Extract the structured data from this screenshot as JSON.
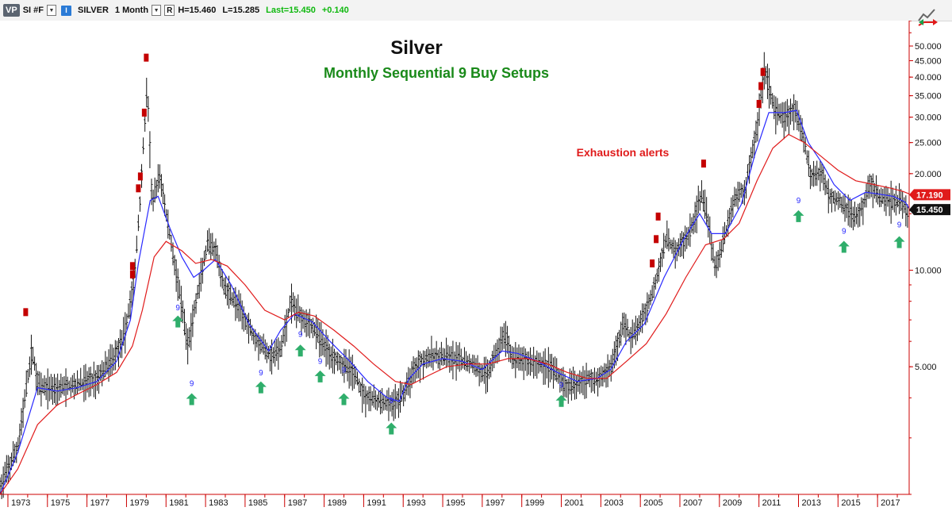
{
  "toolbar": {
    "vp_label": "VP",
    "symbol": "SI #F",
    "i_label": "I",
    "name": "SILVER",
    "interval": "1 Month",
    "r_label": "R",
    "high": "H=15.460",
    "low": "L=15.285",
    "last": "Last=15.450",
    "change": "+0.140",
    "corner_icon": "chart-compare-icon"
  },
  "chart_data": {
    "type": "line",
    "subtype": "monthly-ohlc-bars-with-moving-averages",
    "title": "Silver",
    "subtitle": "Monthly Sequential 9 Buy Setups",
    "annotation": "Exhaustion alerts",
    "y_scale": "log",
    "ylim": [
      2.0,
      60.0
    ],
    "xlim": [
      1972.6,
      2018.6
    ],
    "y_ticks": [
      {
        "value": 50,
        "label": "50.000"
      },
      {
        "value": 45,
        "label": "45.000"
      },
      {
        "value": 40,
        "label": "40.000"
      },
      {
        "value": 35,
        "label": "35.000"
      },
      {
        "value": 30,
        "label": "30.000"
      },
      {
        "value": 25,
        "label": "25.000"
      },
      {
        "value": 20,
        "label": "20.000"
      },
      {
        "value": 10,
        "label": "10.000"
      },
      {
        "value": 5,
        "label": "5.000"
      }
    ],
    "x_ticks": [
      "1973",
      "1975",
      "1977",
      "1979",
      "1981",
      "1983",
      "1985",
      "1987",
      "1989",
      "1991",
      "1993",
      "1995",
      "1997",
      "1999",
      "2001",
      "2003",
      "2005",
      "2007",
      "2009",
      "2011",
      "2013",
      "2015",
      "2017"
    ],
    "price_anchors": [
      [
        1972.6,
        2.1
      ],
      [
        1973.5,
        2.8
      ],
      [
        1974.2,
        5.6
      ],
      [
        1974.6,
        4.3
      ],
      [
        1975.5,
        4.3
      ],
      [
        1976.5,
        4.4
      ],
      [
        1977.5,
        4.6
      ],
      [
        1978.3,
        5.3
      ],
      [
        1978.9,
        6.3
      ],
      [
        1979.4,
        9.5
      ],
      [
        1979.7,
        17.0
      ],
      [
        1980.05,
        38.0
      ],
      [
        1980.3,
        16.0
      ],
      [
        1980.7,
        20.0
      ],
      [
        1981.0,
        15.0
      ],
      [
        1981.5,
        10.0
      ],
      [
        1982.1,
        5.8
      ],
      [
        1982.6,
        8.5
      ],
      [
        1983.1,
        12.0
      ],
      [
        1983.5,
        11.5
      ],
      [
        1983.9,
        9.0
      ],
      [
        1984.5,
        8.0
      ],
      [
        1985.5,
        6.2
      ],
      [
        1986.3,
        5.4
      ],
      [
        1986.8,
        5.6
      ],
      [
        1987.3,
        8.0
      ],
      [
        1987.7,
        7.4
      ],
      [
        1988.5,
        6.6
      ],
      [
        1989.2,
        5.6
      ],
      [
        1990.0,
        5.1
      ],
      [
        1990.5,
        4.8
      ],
      [
        1991.0,
        4.1
      ],
      [
        1991.7,
        3.9
      ],
      [
        1992.5,
        3.8
      ],
      [
        1993.1,
        4.2
      ],
      [
        1993.5,
        4.9
      ],
      [
        1994.0,
        5.3
      ],
      [
        1994.5,
        5.4
      ],
      [
        1995.5,
        5.3
      ],
      [
        1996.5,
        5.1
      ],
      [
        1997.2,
        4.7
      ],
      [
        1998.1,
        6.3
      ],
      [
        1998.6,
        5.3
      ],
      [
        1999.5,
        5.2
      ],
      [
        2000.5,
        5.0
      ],
      [
        2001.3,
        4.3
      ],
      [
        2002.2,
        4.6
      ],
      [
        2003.0,
        4.6
      ],
      [
        2003.5,
        5.0
      ],
      [
        2004.2,
        7.0
      ],
      [
        2004.5,
        6.1
      ],
      [
        2005.0,
        6.8
      ],
      [
        2005.6,
        8.5
      ],
      [
        2006.3,
        12.5
      ],
      [
        2006.8,
        11.5
      ],
      [
        2007.5,
        13.0
      ],
      [
        2008.1,
        17.5
      ],
      [
        2008.5,
        13.5
      ],
      [
        2008.8,
        10.0
      ],
      [
        2009.3,
        13.0
      ],
      [
        2009.8,
        17.0
      ],
      [
        2010.3,
        18.0
      ],
      [
        2010.9,
        28.0
      ],
      [
        2011.3,
        43.0
      ],
      [
        2011.8,
        31.0
      ],
      [
        2012.3,
        30.0
      ],
      [
        2012.8,
        32.0
      ],
      [
        2013.3,
        25.0
      ],
      [
        2013.6,
        20.0
      ],
      [
        2014.2,
        20.0
      ],
      [
        2014.6,
        17.0
      ],
      [
        2015.0,
        16.5
      ],
      [
        2015.5,
        15.5
      ],
      [
        2015.9,
        14.5
      ],
      [
        2016.3,
        16.0
      ],
      [
        2016.6,
        19.0
      ],
      [
        2017.0,
        17.0
      ],
      [
        2017.5,
        16.5
      ],
      [
        2018.0,
        16.5
      ],
      [
        2018.3,
        16.3
      ],
      [
        2018.5,
        14.7
      ],
      [
        2018.6,
        15.3
      ]
    ],
    "series": [
      {
        "name": "",
        "color": "#2a2aff",
        "points": [
          [
            1972.6,
            2.0
          ],
          [
            1973.5,
            2.7
          ],
          [
            1974.5,
            4.3
          ],
          [
            1975.5,
            4.2
          ],
          [
            1976.5,
            4.3
          ],
          [
            1977.5,
            4.5
          ],
          [
            1978.5,
            5.2
          ],
          [
            1979.2,
            7.0
          ],
          [
            1979.6,
            10.5
          ],
          [
            1980.2,
            16.5
          ],
          [
            1980.6,
            17.0
          ],
          [
            1981.2,
            13.5
          ],
          [
            1981.8,
            11.0
          ],
          [
            1982.4,
            9.5
          ],
          [
            1982.9,
            10.0
          ],
          [
            1983.5,
            10.8
          ],
          [
            1984.3,
            9.0
          ],
          [
            1985.2,
            6.8
          ],
          [
            1986.2,
            5.6
          ],
          [
            1986.8,
            6.5
          ],
          [
            1987.5,
            7.3
          ],
          [
            1988.4,
            6.9
          ],
          [
            1989.3,
            6.0
          ],
          [
            1990.3,
            5.2
          ],
          [
            1991.2,
            4.5
          ],
          [
            1992.2,
            4.0
          ],
          [
            1992.8,
            3.9
          ],
          [
            1993.3,
            4.6
          ],
          [
            1994.0,
            5.1
          ],
          [
            1995.0,
            5.3
          ],
          [
            1996.0,
            5.2
          ],
          [
            1997.0,
            4.9
          ],
          [
            1998.0,
            5.6
          ],
          [
            1998.8,
            5.5
          ],
          [
            1999.8,
            5.2
          ],
          [
            2000.8,
            4.8
          ],
          [
            2001.8,
            4.5
          ],
          [
            2002.8,
            4.6
          ],
          [
            2003.5,
            4.9
          ],
          [
            2004.3,
            6.0
          ],
          [
            2005.2,
            6.8
          ],
          [
            2006.2,
            9.5
          ],
          [
            2007.2,
            12.5
          ],
          [
            2008.0,
            15.0
          ],
          [
            2008.6,
            13.0
          ],
          [
            2009.3,
            13.0
          ],
          [
            2010.1,
            16.0
          ],
          [
            2010.8,
            23.0
          ],
          [
            2011.5,
            31.0
          ],
          [
            2012.3,
            31.0
          ],
          [
            2012.9,
            31.5
          ],
          [
            2013.5,
            25.0
          ],
          [
            2014.2,
            21.5
          ],
          [
            2014.8,
            18.5
          ],
          [
            2015.6,
            16.5
          ],
          [
            2016.4,
            17.5
          ],
          [
            2017.0,
            17.3
          ],
          [
            2017.8,
            17.0
          ],
          [
            2018.4,
            16.3
          ],
          [
            2018.6,
            15.6
          ]
        ]
      },
      {
        "name": "",
        "color": "#e01b1b",
        "points": [
          [
            1972.6,
            2.0
          ],
          [
            1973.5,
            2.4
          ],
          [
            1974.5,
            3.3
          ],
          [
            1975.5,
            3.8
          ],
          [
            1976.5,
            4.1
          ],
          [
            1977.5,
            4.4
          ],
          [
            1978.5,
            4.8
          ],
          [
            1979.3,
            5.8
          ],
          [
            1979.8,
            7.5
          ],
          [
            1980.4,
            11.0
          ],
          [
            1981.0,
            12.3
          ],
          [
            1981.8,
            11.5
          ],
          [
            1982.5,
            10.5
          ],
          [
            1983.3,
            10.8
          ],
          [
            1984.1,
            10.3
          ],
          [
            1985.0,
            9.0
          ],
          [
            1986.0,
            7.5
          ],
          [
            1987.0,
            7.0
          ],
          [
            1987.7,
            7.4
          ],
          [
            1988.5,
            7.2
          ],
          [
            1989.5,
            6.5
          ],
          [
            1990.5,
            5.8
          ],
          [
            1991.5,
            5.1
          ],
          [
            1992.6,
            4.5
          ],
          [
            1993.4,
            4.4
          ],
          [
            1994.3,
            4.7
          ],
          [
            1995.2,
            5.0
          ],
          [
            1996.3,
            5.1
          ],
          [
            1997.3,
            5.1
          ],
          [
            1998.3,
            5.3
          ],
          [
            1999.3,
            5.3
          ],
          [
            2000.3,
            5.1
          ],
          [
            2001.3,
            4.8
          ],
          [
            2002.3,
            4.6
          ],
          [
            2003.3,
            4.6
          ],
          [
            2004.3,
            5.2
          ],
          [
            2005.3,
            5.9
          ],
          [
            2006.3,
            7.3
          ],
          [
            2007.3,
            9.5
          ],
          [
            2008.3,
            12.0
          ],
          [
            2009.2,
            12.5
          ],
          [
            2010.0,
            14.0
          ],
          [
            2010.9,
            19.0
          ],
          [
            2011.7,
            24.0
          ],
          [
            2012.5,
            26.5
          ],
          [
            2013.3,
            25.0
          ],
          [
            2014.2,
            22.5
          ],
          [
            2015.0,
            20.5
          ],
          [
            2015.9,
            19.0
          ],
          [
            2016.8,
            18.5
          ],
          [
            2017.7,
            18.0
          ],
          [
            2018.3,
            17.6
          ],
          [
            2018.6,
            17.3
          ]
        ]
      }
    ],
    "nine_count_labels": [
      {
        "x": 1981.6,
        "y": 7.5,
        "label": "9"
      },
      {
        "x": 1982.3,
        "y": 4.35,
        "label": "9"
      },
      {
        "x": 1985.8,
        "y": 4.7,
        "label": "9"
      },
      {
        "x": 1987.8,
        "y": 6.2,
        "label": "9"
      },
      {
        "x": 1988.8,
        "y": 5.1,
        "label": "9"
      },
      {
        "x": 1990.0,
        "y": 4.8,
        "label": "9"
      },
      {
        "x": 1992.4,
        "y": 3.85,
        "label": "9"
      },
      {
        "x": 2001.0,
        "y": 4.3,
        "label": "9"
      },
      {
        "x": 2013.0,
        "y": 16.2,
        "label": "9"
      },
      {
        "x": 2015.3,
        "y": 13.0,
        "label": "9"
      },
      {
        "x": 2018.1,
        "y": 13.6,
        "label": "9"
      }
    ],
    "buy_arrows": [
      {
        "x": 1981.6,
        "y": 6.9
      },
      {
        "x": 1982.3,
        "y": 3.95
      },
      {
        "x": 1985.8,
        "y": 4.3
      },
      {
        "x": 1987.8,
        "y": 5.6
      },
      {
        "x": 1988.8,
        "y": 4.65
      },
      {
        "x": 1990.0,
        "y": 3.95
      },
      {
        "x": 1992.4,
        "y": 3.2
      },
      {
        "x": 2001.0,
        "y": 3.9
      },
      {
        "x": 2013.0,
        "y": 14.7
      },
      {
        "x": 2015.3,
        "y": 11.8
      },
      {
        "x": 2018.1,
        "y": 12.2
      }
    ],
    "exhaustion_alerts": [
      {
        "x": 1973.9,
        "y": 7.4
      },
      {
        "x": 1979.3,
        "y": 9.7
      },
      {
        "x": 1979.3,
        "y": 10.3
      },
      {
        "x": 1979.6,
        "y": 18.0
      },
      {
        "x": 1979.7,
        "y": 19.6
      },
      {
        "x": 1979.9,
        "y": 31.0
      },
      {
        "x": 1980.0,
        "y": 46.0
      },
      {
        "x": 2005.6,
        "y": 10.5
      },
      {
        "x": 2005.8,
        "y": 12.5
      },
      {
        "x": 2005.9,
        "y": 14.7
      },
      {
        "x": 2008.2,
        "y": 21.5
      },
      {
        "x": 2011.0,
        "y": 33.0
      },
      {
        "x": 2011.1,
        "y": 37.5
      },
      {
        "x": 2011.2,
        "y": 41.5
      }
    ],
    "price_badges": [
      {
        "value": 17.19,
        "label": "17.190",
        "color": "#e01b1b"
      },
      {
        "value": 15.45,
        "label": "15.450",
        "color": "#111111"
      }
    ],
    "grid": false,
    "legend": "none"
  }
}
